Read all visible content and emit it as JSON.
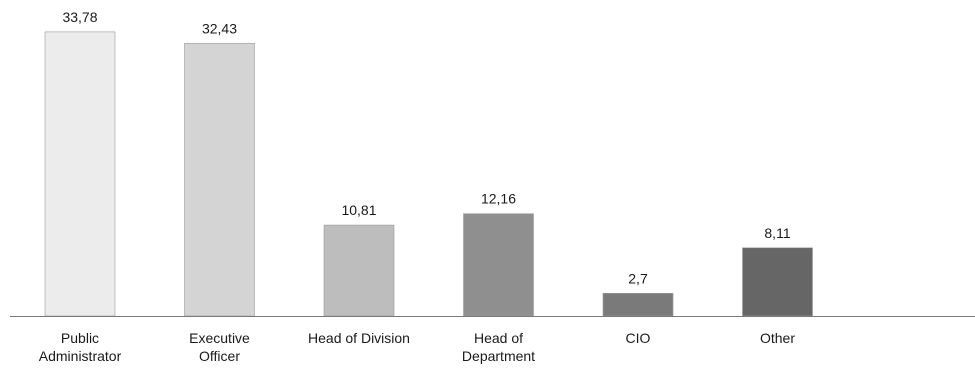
{
  "chart_data": {
    "type": "bar",
    "categories": [
      [
        "Public",
        "Administrator"
      ],
      [
        "Executive",
        "Officer"
      ],
      [
        "Head of Division"
      ],
      [
        "Head of",
        "Department"
      ],
      [
        "CIO"
      ],
      [
        "Other"
      ]
    ],
    "values": [
      33.78,
      32.43,
      10.81,
      12.16,
      2.7,
      8.11
    ],
    "value_labels": [
      "33,78",
      "32,43",
      "10,81",
      "12,16",
      "2,7",
      "8,11"
    ],
    "bar_colors": [
      "#ececec",
      "#d4d4d4",
      "#bdbdbd",
      "#8f8f8f",
      "#7a7a7a",
      "#666666"
    ],
    "title": "",
    "xlabel": "",
    "ylabel": "",
    "ylim": [
      0,
      34.6
    ],
    "grid": false,
    "legend": "none"
  }
}
